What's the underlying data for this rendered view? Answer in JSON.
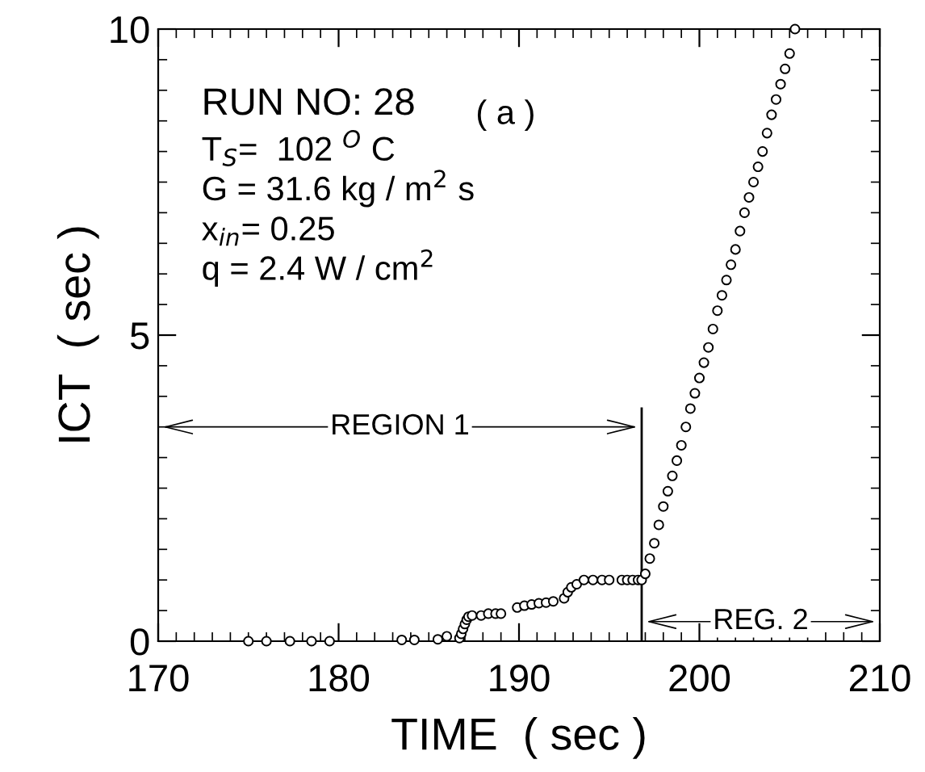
{
  "chart_data": {
    "type": "scatter",
    "xlabel": "TIME  ( sec )",
    "ylabel": "ICT  ( sec )",
    "xlim": [
      170,
      210
    ],
    "xticks": [
      170,
      180,
      190,
      200,
      210
    ],
    "ylim": [
      0,
      10
    ],
    "yticks": [
      0,
      5,
      10
    ],
    "marker": "circle",
    "grid": false,
    "series": [
      {
        "color": "#000000",
        "x": [
          175,
          176,
          177.3,
          178.5,
          179.5,
          183.5,
          184.2,
          185.5,
          186.0,
          186.7,
          186.8,
          186.9,
          187.0,
          187.1,
          187.2,
          187.4,
          187.9,
          188.3,
          188.7,
          189.0,
          189.9,
          190.3,
          190.7,
          191.1,
          191.5,
          191.9,
          192.5,
          192.7,
          192.9,
          193.2,
          193.6,
          194.1,
          194.6,
          195.0,
          195.7,
          196.0,
          196.3,
          196.6,
          196.8,
          197.0,
          197.25,
          197.5,
          197.75,
          198.0,
          198.25,
          198.5,
          198.75,
          199.0,
          199.25,
          199.5,
          199.75,
          200.0,
          200.25,
          200.5,
          200.75,
          201.0,
          201.25,
          201.5,
          201.75,
          202.0,
          202.25,
          202.5,
          202.75,
          203.0,
          203.25,
          203.5,
          203.75,
          204.0,
          204.25,
          204.5,
          204.75,
          205.0,
          205.3
        ],
        "values": [
          0,
          0,
          0,
          0,
          0,
          0.02,
          0.02,
          0.03,
          0.08,
          0.05,
          0.12,
          0.2,
          0.28,
          0.35,
          0.4,
          0.42,
          0.42,
          0.45,
          0.45,
          0.45,
          0.55,
          0.58,
          0.6,
          0.62,
          0.63,
          0.65,
          0.7,
          0.8,
          0.88,
          0.93,
          1.0,
          1.0,
          1.0,
          1.0,
          1.0,
          1.0,
          1.0,
          1.0,
          1.0,
          1.1,
          1.35,
          1.6,
          1.9,
          2.2,
          2.45,
          2.7,
          2.95,
          3.2,
          3.5,
          3.8,
          4.05,
          4.3,
          4.55,
          4.8,
          5.1,
          5.4,
          5.65,
          5.9,
          6.15,
          6.4,
          6.7,
          7.0,
          7.25,
          7.5,
          7.75,
          8.0,
          8.3,
          8.6,
          8.85,
          9.1,
          9.35,
          9.6,
          10.0
        ]
      }
    ],
    "ref_lines": [
      {
        "axis": "x",
        "value": 196.8,
        "color": "#000000",
        "line_style": "solid"
      }
    ],
    "annotations": [
      "RUN NO: 28",
      "T$_{S}$=  102 $^{O}$ C",
      "G = 31.6 kg / m$^{2}$ s",
      "x$_{in}$= 0.25",
      "q = 2.4 W / cm$^{2}$",
      "( a )",
      "REGION 1",
      "REG. 2"
    ]
  }
}
